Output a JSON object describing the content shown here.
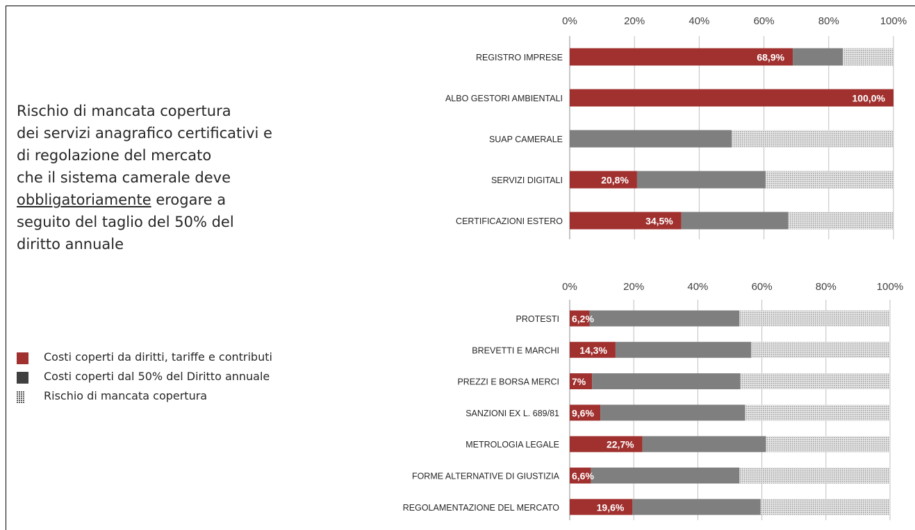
{
  "title_lines": [
    "Rischio di mancata copertura",
    "dei servizi anagrafico certificativi e",
    "di regolazione del mercato",
    "che il sistema camerale deve",
    "erogare a",
    "seguito del taglio del 50% del",
    "diritto annuale"
  ],
  "title_underlined_word": "obbligatoriamente",
  "legend": [
    {
      "label": "Costi coperti da diritti, tariffe e contributi",
      "color": "#a0312f"
    },
    {
      "label": "Costi coperti dal 50% del Diritto annuale",
      "color": "#404040"
    },
    {
      "label": "Rischio di mancata copertura",
      "color": "#9a9a9a"
    }
  ],
  "colors": {
    "covered": "#a0312f",
    "half_fee": "#7f7f7f",
    "risk": "#d2d2d2",
    "grid": "#bfbfbf"
  },
  "chart_data": [
    {
      "type": "bar",
      "orientation": "horizontal",
      "stacked": "percent",
      "xlim": [
        0,
        100
      ],
      "ticks": [
        "0%",
        "20%",
        "40%",
        "60%",
        "80%",
        "100%"
      ],
      "grid": true,
      "categories": [
        "REGISTRO IMPRESE",
        "ALBO GESTORI AMBIENTALI",
        "SUAP CAMERALE",
        "SERVIZI DIGITALI",
        "CERTIFICAZIONI ESTERO"
      ],
      "series": [
        {
          "name": "Costi coperti da diritti, tariffe e contributi",
          "values": [
            68.9,
            100.0,
            0,
            20.8,
            34.5
          ],
          "labels": [
            "68,9%",
            "100,0%",
            "",
            "20,8%",
            "34,5%"
          ]
        },
        {
          "name": "Costi coperti dal 50% del Diritto annuale",
          "values": [
            15.5,
            0,
            50,
            39.7,
            33.0
          ]
        },
        {
          "name": "Rischio di mancata copertura",
          "values": [
            15.6,
            0,
            50,
            39.5,
            32.5
          ]
        }
      ]
    },
    {
      "type": "bar",
      "orientation": "horizontal",
      "stacked": "percent",
      "xlim": [
        0,
        100
      ],
      "ticks": [
        "0%",
        "20%",
        "40%",
        "60%",
        "80%",
        "100%"
      ],
      "grid": true,
      "categories": [
        "PROTESTI",
        "BREVETTI E MARCHI",
        "PREZZI E BORSA MERCI",
        "SANZIONI EX L. 689/81",
        "METROLOGIA LEGALE",
        "FORME ALTERNATIVE DI GIUSTIZIA",
        "REGOLAMENTAZIONE DEL MERCATO"
      ],
      "series": [
        {
          "name": "Costi coperti da diritti, tariffe e contributi",
          "values": [
            6.2,
            14.3,
            7,
            9.6,
            22.7,
            6.6,
            19.6
          ],
          "labels": [
            "6,2%",
            "14,3%",
            "7%",
            "9,6%",
            "22,7%",
            "6,6%",
            "19,6%"
          ]
        },
        {
          "name": "Costi coperti dal 50% del Diritto annuale",
          "values": [
            46.8,
            42.4,
            46.3,
            45.2,
            38.6,
            46.4,
            40.0
          ]
        },
        {
          "name": "Rischio di mancata copertura",
          "values": [
            47.0,
            43.3,
            46.7,
            45.2,
            38.7,
            47.0,
            40.4
          ]
        }
      ]
    }
  ]
}
